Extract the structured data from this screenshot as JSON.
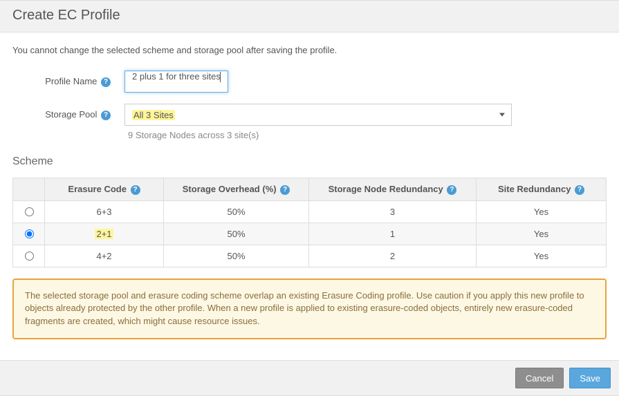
{
  "header": {
    "title": "Create EC Profile"
  },
  "intro_note": "You cannot change the selected scheme and storage pool after saving the profile.",
  "form": {
    "profile_name": {
      "label": "Profile Name",
      "value": "2 plus 1 for three sites"
    },
    "storage_pool": {
      "label": "Storage Pool",
      "selected": "All 3 Sites",
      "highlight": true,
      "sub_note": "9 Storage Nodes across 3 site(s)"
    }
  },
  "scheme": {
    "title": "Scheme",
    "columns": {
      "erasure_code": "Erasure Code",
      "storage_overhead": "Storage Overhead (%)",
      "node_redundancy": "Storage Node Redundancy",
      "site_redundancy": "Site Redundancy"
    },
    "rows": [
      {
        "code": "6+3",
        "overhead": "50%",
        "node_redundancy": "3",
        "site_redundancy": "Yes",
        "selected": false,
        "highlight": false
      },
      {
        "code": "2+1",
        "overhead": "50%",
        "node_redundancy": "1",
        "site_redundancy": "Yes",
        "selected": true,
        "highlight": true
      },
      {
        "code": "4+2",
        "overhead": "50%",
        "node_redundancy": "2",
        "site_redundancy": "Yes",
        "selected": false,
        "highlight": false
      }
    ]
  },
  "alert": {
    "text": "The selected storage pool and erasure coding scheme overlap an existing Erasure Coding profile. Use caution if you apply this new profile to objects already protected by the other profile. When a new profile is applied to existing erasure-coded objects, entirely new erasure-coded fragments are created, which might cause resource issues.",
    "border_color": "#e8a33d",
    "background_color": "#fdf8e4",
    "text_color": "#8a6d3b"
  },
  "footer": {
    "cancel": "Cancel",
    "save": "Save"
  },
  "colors": {
    "highlight_bg": "#fff59a",
    "help_icon_bg": "#4a9bd4",
    "input_focus_border": "#66afe9",
    "btn_cancel_bg": "#8e8e8e",
    "btn_save_bg": "#5aa7de"
  }
}
